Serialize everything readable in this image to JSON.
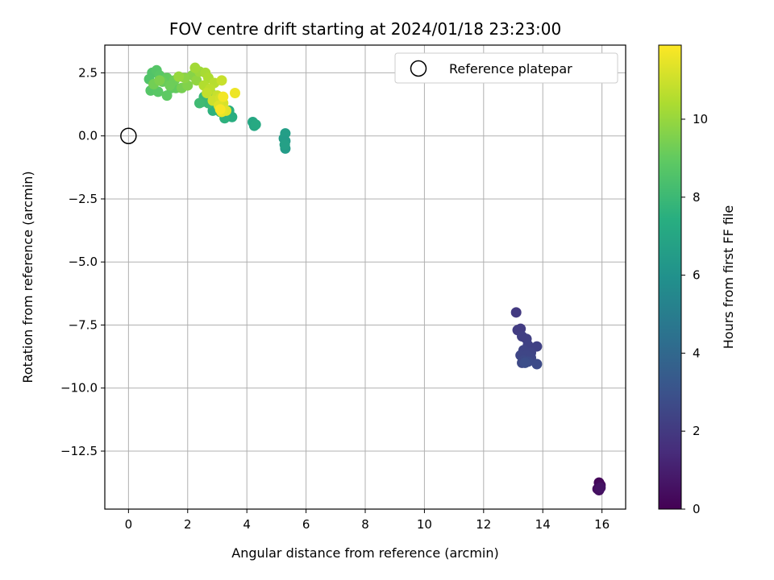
{
  "chart_data": {
    "type": "scatter",
    "title": "FOV centre drift starting at 2024/01/18 23:23:00",
    "xlabel": "Angular distance from reference (arcmin)",
    "ylabel": "Rotation from reference (arcmin)",
    "xlim": [
      -0.8,
      16.8
    ],
    "ylim": [
      -14.8,
      3.6
    ],
    "xticks": [
      0,
      2,
      4,
      6,
      8,
      10,
      12,
      14,
      16
    ],
    "yticks": [
      2.5,
      0.0,
      -2.5,
      -5.0,
      -7.5,
      -10.0,
      -12.5
    ],
    "xtick_labels": [
      "0",
      "2",
      "4",
      "6",
      "8",
      "10",
      "12",
      "14",
      "16"
    ],
    "ytick_labels": [
      "2.5",
      "0.0",
      "−2.5",
      "−5.0",
      "−7.5",
      "−10.0",
      "−12.5"
    ],
    "grid": true,
    "legend": {
      "position": "top-right",
      "entries": [
        "Reference platepar"
      ]
    },
    "reference_point": {
      "name": "Reference platepar",
      "x": 0,
      "y": 0,
      "marker": "open-circle"
    },
    "colorbar": {
      "label": "Hours from first FF file",
      "min": 0,
      "max": 11.9,
      "ticks": [
        0,
        2,
        4,
        6,
        8,
        10
      ],
      "tick_labels": [
        "0",
        "2",
        "4",
        "6",
        "8",
        "10"
      ],
      "colormap": "viridis"
    },
    "points": [
      [
        15.9,
        -13.75,
        0.2
      ],
      [
        15.95,
        -13.85,
        0.3
      ],
      [
        15.85,
        -14.0,
        0.4
      ],
      [
        15.9,
        -14.05,
        0.5
      ],
      [
        15.95,
        -13.95,
        0.6
      ],
      [
        13.1,
        -7.0,
        2.0
      ],
      [
        13.15,
        -7.7,
        2.1
      ],
      [
        13.25,
        -7.65,
        2.1
      ],
      [
        13.3,
        -7.95,
        2.2
      ],
      [
        13.45,
        -8.05,
        2.2
      ],
      [
        13.5,
        -8.3,
        2.3
      ],
      [
        13.8,
        -8.35,
        2.3
      ],
      [
        13.35,
        -8.5,
        2.4
      ],
      [
        13.6,
        -8.6,
        2.4
      ],
      [
        13.25,
        -8.7,
        2.5
      ],
      [
        13.45,
        -8.7,
        2.5
      ],
      [
        13.6,
        -8.8,
        2.5
      ],
      [
        13.35,
        -8.9,
        2.6
      ],
      [
        13.3,
        -9.0,
        2.6
      ],
      [
        13.5,
        -8.95,
        2.7
      ],
      [
        13.8,
        -9.05,
        2.7
      ],
      [
        13.4,
        -9.0,
        2.8
      ],
      [
        5.3,
        0.1,
        6.6
      ],
      [
        5.25,
        -0.1,
        6.6
      ],
      [
        5.3,
        -0.2,
        6.5
      ],
      [
        5.3,
        -0.5,
        6.5
      ],
      [
        5.28,
        -0.35,
        6.7
      ],
      [
        4.2,
        0.55,
        7.1
      ],
      [
        4.25,
        0.4,
        7.1
      ],
      [
        4.3,
        0.45,
        7.2
      ],
      [
        3.4,
        1.0,
        7.5
      ],
      [
        3.5,
        0.75,
        7.4
      ],
      [
        3.25,
        0.7,
        7.6
      ],
      [
        2.85,
        1.0,
        7.6
      ],
      [
        3.1,
        0.95,
        7.7
      ],
      [
        2.5,
        1.35,
        7.9
      ],
      [
        2.55,
        1.55,
        8.0
      ],
      [
        2.7,
        1.3,
        8.0
      ],
      [
        2.4,
        1.3,
        8.1
      ],
      [
        2.9,
        1.6,
        8.2
      ],
      [
        0.8,
        2.5,
        8.6
      ],
      [
        0.7,
        2.25,
        8.6
      ],
      [
        0.75,
        1.8,
        8.7
      ],
      [
        0.95,
        2.6,
        8.7
      ],
      [
        1.05,
        2.4,
        8.8
      ],
      [
        1.0,
        1.75,
        8.8
      ],
      [
        1.3,
        1.6,
        8.9
      ],
      [
        1.45,
        1.9,
        8.9
      ],
      [
        1.3,
        2.3,
        9.0
      ],
      [
        1.6,
        1.9,
        9.0
      ],
      [
        1.15,
        2.15,
        9.1
      ],
      [
        1.55,
        2.2,
        9.2
      ],
      [
        1.4,
        2.0,
        9.2
      ],
      [
        0.85,
        2.05,
        9.3
      ],
      [
        1.8,
        1.9,
        9.4
      ],
      [
        1.05,
        2.2,
        9.5
      ],
      [
        2.0,
        2.0,
        9.6
      ],
      [
        2.15,
        2.4,
        9.7
      ],
      [
        1.9,
        2.3,
        9.8
      ],
      [
        2.3,
        2.2,
        9.9
      ],
      [
        1.7,
        2.35,
        10.0
      ],
      [
        2.4,
        2.55,
        10.1
      ],
      [
        2.25,
        2.7,
        10.2
      ],
      [
        2.6,
        2.5,
        10.3
      ],
      [
        2.7,
        2.3,
        10.4
      ],
      [
        2.55,
        2.0,
        10.5
      ],
      [
        2.9,
        2.1,
        10.6
      ],
      [
        2.75,
        1.85,
        10.7
      ],
      [
        2.65,
        1.7,
        10.8
      ],
      [
        3.0,
        1.6,
        10.9
      ],
      [
        3.15,
        2.2,
        10.9
      ],
      [
        2.85,
        1.4,
        11.0
      ],
      [
        3.1,
        1.5,
        11.1
      ],
      [
        3.2,
        1.3,
        11.2
      ],
      [
        3.05,
        1.2,
        11.3
      ],
      [
        3.3,
        1.0,
        11.4
      ],
      [
        3.15,
        0.95,
        11.5
      ],
      [
        3.6,
        1.7,
        11.6
      ],
      [
        3.2,
        1.55,
        11.7
      ],
      [
        3.1,
        1.05,
        11.8
      ]
    ]
  }
}
